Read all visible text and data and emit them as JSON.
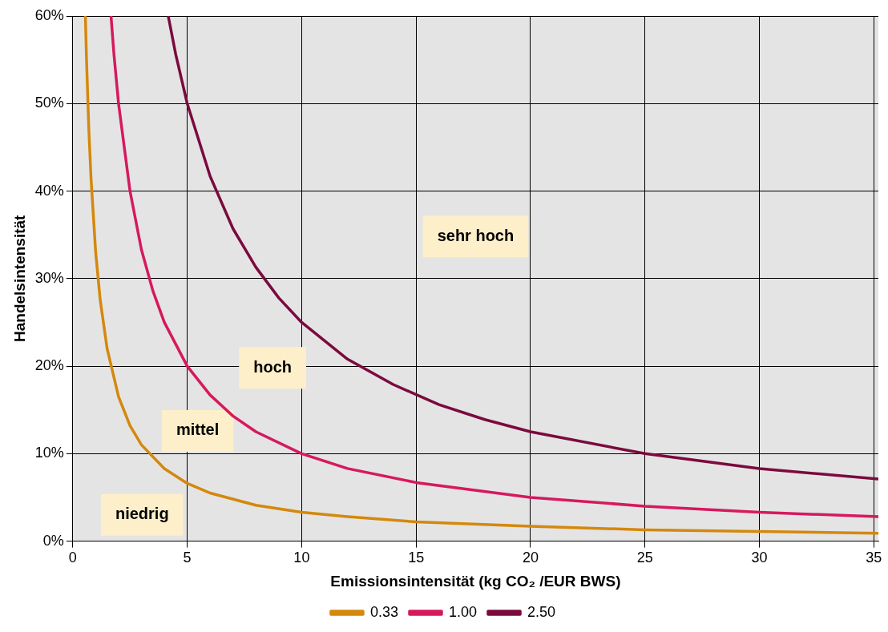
{
  "chart_data": {
    "type": "line",
    "xlabel": "Emissionsintensität (kg CO₂ /EUR BWS)",
    "ylabel": "Handelsintensität",
    "xlim": [
      0,
      35.2
    ],
    "xticks": [
      0,
      5,
      10,
      15,
      20,
      25,
      30,
      35
    ],
    "ylim": [
      0,
      60
    ],
    "yticks": [
      {
        "value": 0,
        "label": "0%"
      },
      {
        "value": 10,
        "label": "10%"
      },
      {
        "value": 20,
        "label": "20%"
      },
      {
        "value": 30,
        "label": "30%"
      },
      {
        "value": 40,
        "label": "40%"
      },
      {
        "value": 50,
        "label": "50%"
      },
      {
        "value": 60,
        "label": "60%"
      }
    ],
    "grid": true,
    "legend": "bottom",
    "marker": "none",
    "line_style": "solid",
    "series": [
      {
        "name": "0.33",
        "color": "#d4880c",
        "x": [
          0.55,
          0.6,
          0.7,
          0.8,
          1,
          1.2,
          1.5,
          2,
          2.5,
          3,
          4,
          5,
          6,
          8,
          10,
          12,
          15,
          20,
          25,
          30,
          35.2
        ],
        "values": [
          60,
          55,
          47.1,
          41.3,
          33,
          27.5,
          22,
          16.5,
          13.2,
          11,
          8.3,
          6.6,
          5.5,
          4.1,
          3.3,
          2.8,
          2.2,
          1.7,
          1.3,
          1.1,
          0.9
        ]
      },
      {
        "name": "1.00",
        "color": "#d6195e",
        "x": [
          1.67,
          1.8,
          2,
          2.5,
          3,
          3.5,
          4,
          5,
          6,
          7,
          8,
          10,
          12,
          15,
          20,
          25,
          30,
          35.2
        ],
        "values": [
          60,
          55.6,
          50,
          40,
          33.3,
          28.6,
          25,
          20,
          16.7,
          14.3,
          12.5,
          10,
          8.3,
          6.7,
          5,
          4,
          3.3,
          2.8
        ]
      },
      {
        "name": "2.50",
        "color": "#7b0a3e",
        "x": [
          4.17,
          4.5,
          5,
          6,
          7,
          8,
          9,
          10,
          12,
          14,
          16,
          18,
          20,
          25,
          30,
          35.2
        ],
        "values": [
          60,
          55.6,
          50,
          41.7,
          35.7,
          31.3,
          27.8,
          25,
          20.8,
          17.9,
          15.6,
          13.9,
          12.5,
          10,
          8.3,
          7.1
        ]
      }
    ],
    "annotations": [
      "sehr hoch",
      "hoch",
      "mittel",
      "niedrig"
    ]
  }
}
